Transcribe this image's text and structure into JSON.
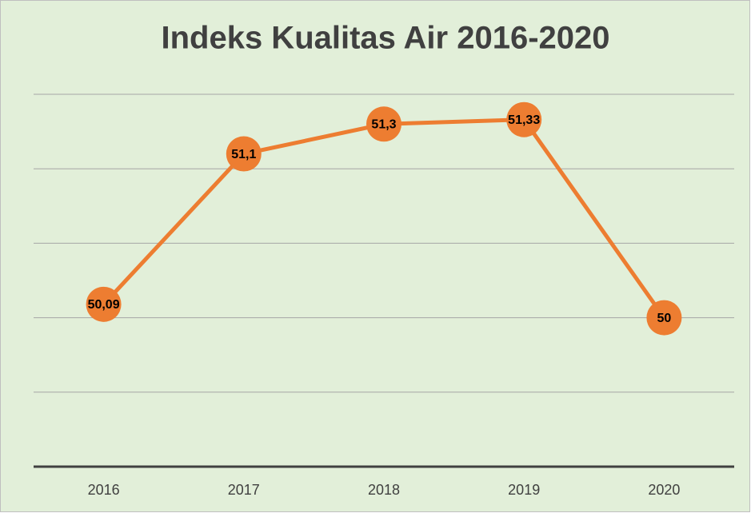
{
  "chart_data": {
    "type": "line",
    "title": "Indeks Kualitas Air 2016-2020",
    "categories": [
      "2016",
      "2017",
      "2018",
      "2019",
      "2020"
    ],
    "series": [
      {
        "name": "Indeks Kualitas Air",
        "color": "#ed7d31",
        "values": [
          50.09,
          51.1,
          51.3,
          51.33,
          50
        ],
        "value_labels": [
          "50,09",
          "51,1",
          "51,3",
          "51,33",
          "50"
        ]
      }
    ],
    "ylim": [
      49,
      51.5
    ],
    "yticks": [
      49.5,
      50,
      50.5,
      51,
      51.5
    ],
    "grid": true
  }
}
